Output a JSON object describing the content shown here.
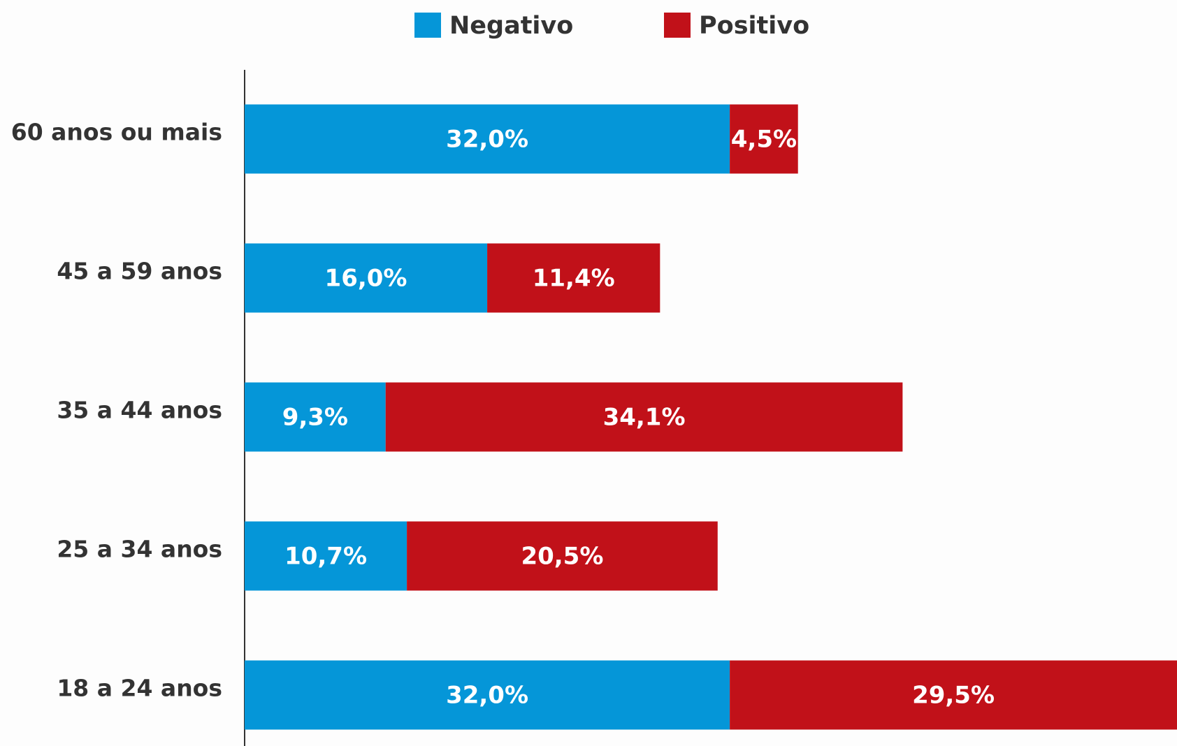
{
  "chart_data": {
    "type": "stacked-bar-horizontal",
    "categories": [
      "60 anos ou mais",
      "45 a 59 anos",
      "35 a 44 anos",
      "25 a 34 anos",
      "18 a 24 anos"
    ],
    "series": [
      {
        "name": "Negativo",
        "color": "#0596d8",
        "values": [
          32.0,
          16.0,
          9.3,
          10.7,
          32.0
        ],
        "value_labels": [
          "32,0%",
          "16,0%",
          "9,3%",
          "10,7%",
          "32,0%"
        ]
      },
      {
        "name": "Positivo",
        "color": "#c11119",
        "values": [
          4.5,
          11.4,
          34.1,
          20.5,
          29.5
        ],
        "value_labels": [
          "4,5%",
          "11,4%",
          "34,1%",
          "20,5%",
          "29,5%"
        ]
      }
    ]
  }
}
